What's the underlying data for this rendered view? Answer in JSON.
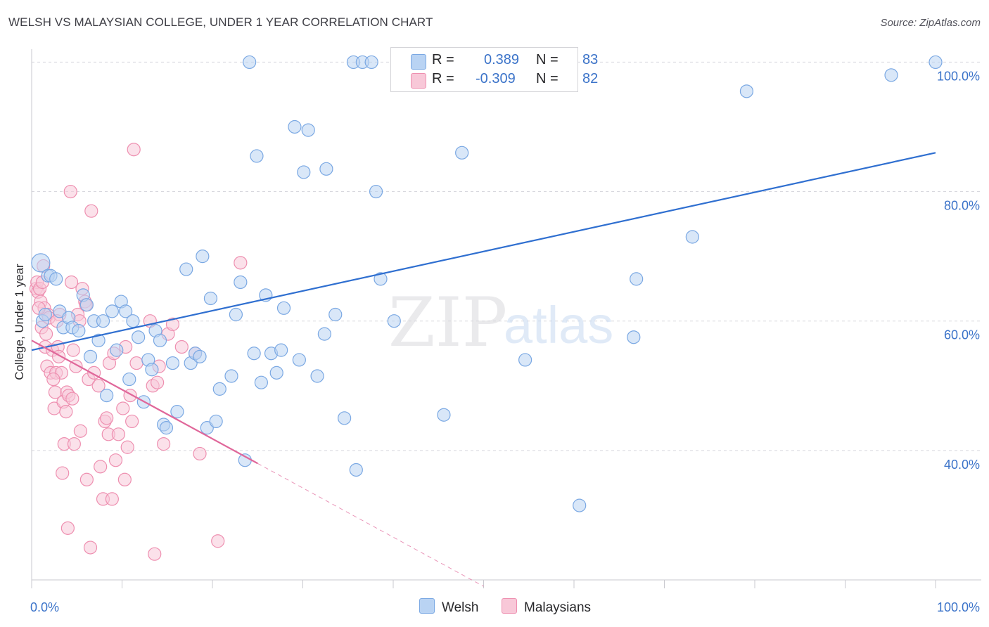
{
  "title": "WELSH VS MALAYSIAN COLLEGE, UNDER 1 YEAR CORRELATION CHART",
  "source": "Source: ZipAtlas.com",
  "watermark": {
    "zip": "ZIP",
    "atlas": "atlas"
  },
  "colors": {
    "welsh_fill": "#b9d3f3",
    "welsh_stroke": "#7aa8e3",
    "welsh_line": "#2f6fd0",
    "malay_fill": "#f8c8d8",
    "malay_stroke": "#ee8fb0",
    "malay_line": "#e0679a",
    "accent_text": "#3b73c9",
    "grid": "#d8d8de"
  },
  "legend": {
    "rows": [
      {
        "series": "Welsh",
        "r_label": "R =",
        "r_value": "0.389",
        "n_label": "N =",
        "n_value": "83"
      },
      {
        "series": "Malaysians",
        "r_label": "R =",
        "r_value": "-0.309",
        "n_label": "N =",
        "n_value": "82"
      }
    ]
  },
  "bottom_legend": [
    "Welsh",
    "Malaysians"
  ],
  "chart_data": {
    "type": "scatter",
    "title": "WELSH VS MALAYSIAN COLLEGE, UNDER 1 YEAR CORRELATION CHART",
    "xlabel": "",
    "ylabel": "College, Under 1 year",
    "xlim": [
      0,
      100
    ],
    "ylim": [
      20,
      102
    ],
    "x_tick_labels": [
      "0.0%",
      "100.0%"
    ],
    "y_ticks": [
      40,
      60,
      80,
      100
    ],
    "y_tick_labels": [
      "40.0%",
      "60.0%",
      "80.0%",
      "100.0%"
    ],
    "grid": true,
    "series": [
      {
        "name": "Welsh",
        "trendline": {
          "x": [
            0,
            100
          ],
          "y": [
            55.5,
            86.0
          ]
        },
        "points": [
          [
            1,
            69
          ],
          [
            1.2,
            60
          ],
          [
            1.5,
            61
          ],
          [
            1.8,
            67
          ],
          [
            2.1,
            67
          ],
          [
            2.7,
            66.5
          ],
          [
            3.1,
            61.5
          ],
          [
            3.5,
            59
          ],
          [
            4.1,
            60.5
          ],
          [
            4.5,
            59
          ],
          [
            5.2,
            58.5
          ],
          [
            5.7,
            64
          ],
          [
            6.1,
            62.5
          ],
          [
            6.5,
            54.5
          ],
          [
            6.9,
            60
          ],
          [
            7.4,
            57
          ],
          [
            7.9,
            60
          ],
          [
            8.3,
            48.5
          ],
          [
            8.9,
            61.5
          ],
          [
            9.4,
            55.5
          ],
          [
            9.9,
            63
          ],
          [
            10.4,
            61.5
          ],
          [
            10.8,
            51
          ],
          [
            11.2,
            60
          ],
          [
            11.8,
            57.5
          ],
          [
            12.4,
            47.5
          ],
          [
            12.9,
            54
          ],
          [
            13.3,
            52.5
          ],
          [
            13.7,
            58.5
          ],
          [
            14.2,
            57
          ],
          [
            14.6,
            44
          ],
          [
            14.9,
            43.5
          ],
          [
            15.6,
            53.5
          ],
          [
            16.1,
            46
          ],
          [
            17.1,
            68
          ],
          [
            17.6,
            53.5
          ],
          [
            18.1,
            55
          ],
          [
            18.6,
            54.5
          ],
          [
            18.9,
            70
          ],
          [
            19.4,
            43.5
          ],
          [
            19.8,
            63.5
          ],
          [
            20.4,
            44.5
          ],
          [
            20.8,
            49.5
          ],
          [
            22.1,
            51.5
          ],
          [
            22.6,
            61
          ],
          [
            23.1,
            66
          ],
          [
            23.6,
            38.5
          ],
          [
            24.1,
            100
          ],
          [
            24.6,
            55
          ],
          [
            24.9,
            85.5
          ],
          [
            25.4,
            50.5
          ],
          [
            25.9,
            64
          ],
          [
            26.5,
            55
          ],
          [
            27.1,
            52
          ],
          [
            27.6,
            55.5
          ],
          [
            27.9,
            62
          ],
          [
            29.1,
            90
          ],
          [
            29.6,
            54
          ],
          [
            30.1,
            83
          ],
          [
            30.6,
            89.5
          ],
          [
            31.6,
            51.5
          ],
          [
            32.4,
            58
          ],
          [
            32.6,
            83.5
          ],
          [
            33.6,
            61
          ],
          [
            34.6,
            45
          ],
          [
            35.6,
            100
          ],
          [
            35.9,
            37
          ],
          [
            36.6,
            100
          ],
          [
            37.6,
            100
          ],
          [
            38.1,
            80
          ],
          [
            38.6,
            66.5
          ],
          [
            40.1,
            60
          ],
          [
            41.1,
            100
          ],
          [
            45.6,
            45.5
          ],
          [
            47.6,
            86
          ],
          [
            54.6,
            54
          ],
          [
            60.6,
            31.5
          ],
          [
            66.6,
            57.5
          ],
          [
            66.9,
            66.5
          ],
          [
            73.1,
            73
          ],
          [
            79.1,
            95.5
          ],
          [
            95.1,
            98
          ],
          [
            100,
            100
          ]
        ]
      },
      {
        "name": "Malaysians",
        "trendline": {
          "x": [
            0,
            25
          ],
          "y": [
            57.0,
            38.0
          ]
        },
        "trendline_dashed": {
          "x": [
            25,
            50
          ],
          "y": [
            38.0,
            19.0
          ]
        },
        "points": [
          [
            0.5,
            65
          ],
          [
            0.6,
            66
          ],
          [
            0.7,
            64.5
          ],
          [
            0.9,
            65
          ],
          [
            1.0,
            63
          ],
          [
            1.1,
            59
          ],
          [
            1.3,
            68.5
          ],
          [
            1.4,
            62
          ],
          [
            1.5,
            56
          ],
          [
            1.7,
            53
          ],
          [
            1.8,
            61
          ],
          [
            1.9,
            60.5
          ],
          [
            2.1,
            52
          ],
          [
            2.3,
            55.5
          ],
          [
            2.5,
            46.5
          ],
          [
            2.6,
            49
          ],
          [
            2.7,
            52
          ],
          [
            2.9,
            56
          ],
          [
            3.0,
            54.5
          ],
          [
            3.1,
            61
          ],
          [
            3.3,
            52
          ],
          [
            3.4,
            36.5
          ],
          [
            3.5,
            47.5
          ],
          [
            3.6,
            41
          ],
          [
            3.8,
            46
          ],
          [
            3.9,
            49
          ],
          [
            4.0,
            28
          ],
          [
            4.1,
            48.5
          ],
          [
            4.3,
            80
          ],
          [
            4.4,
            66
          ],
          [
            4.5,
            48
          ],
          [
            4.6,
            55.5
          ],
          [
            4.7,
            41
          ],
          [
            4.9,
            53
          ],
          [
            5.1,
            61
          ],
          [
            5.3,
            60
          ],
          [
            5.4,
            43
          ],
          [
            5.6,
            65
          ],
          [
            5.9,
            63
          ],
          [
            6.0,
            62.5
          ],
          [
            6.1,
            35.5
          ],
          [
            6.3,
            51
          ],
          [
            6.5,
            25
          ],
          [
            6.6,
            77
          ],
          [
            6.9,
            52
          ],
          [
            7.4,
            50
          ],
          [
            7.6,
            37.5
          ],
          [
            7.9,
            32.5
          ],
          [
            8.1,
            44.5
          ],
          [
            8.3,
            45
          ],
          [
            8.5,
            42.5
          ],
          [
            8.6,
            53.5
          ],
          [
            8.9,
            32.5
          ],
          [
            9.1,
            55
          ],
          [
            9.3,
            38.5
          ],
          [
            9.6,
            42.5
          ],
          [
            10.1,
            46.5
          ],
          [
            10.3,
            35.5
          ],
          [
            10.4,
            56
          ],
          [
            10.6,
            40.5
          ],
          [
            10.9,
            48.5
          ],
          [
            11.1,
            44.5
          ],
          [
            11.3,
            86.5
          ],
          [
            11.6,
            53.5
          ],
          [
            13.1,
            60
          ],
          [
            13.4,
            50
          ],
          [
            13.6,
            24
          ],
          [
            13.9,
            50.5
          ],
          [
            14.1,
            53
          ],
          [
            14.6,
            41
          ],
          [
            15.1,
            58
          ],
          [
            15.6,
            59.5
          ],
          [
            16.6,
            56
          ],
          [
            18.1,
            55
          ],
          [
            18.6,
            39.5
          ],
          [
            20.6,
            26
          ],
          [
            23.1,
            69
          ],
          [
            1.2,
            66
          ],
          [
            2.8,
            60
          ],
          [
            0.8,
            62
          ],
          [
            1.6,
            58
          ],
          [
            2.4,
            51
          ]
        ]
      }
    ]
  }
}
